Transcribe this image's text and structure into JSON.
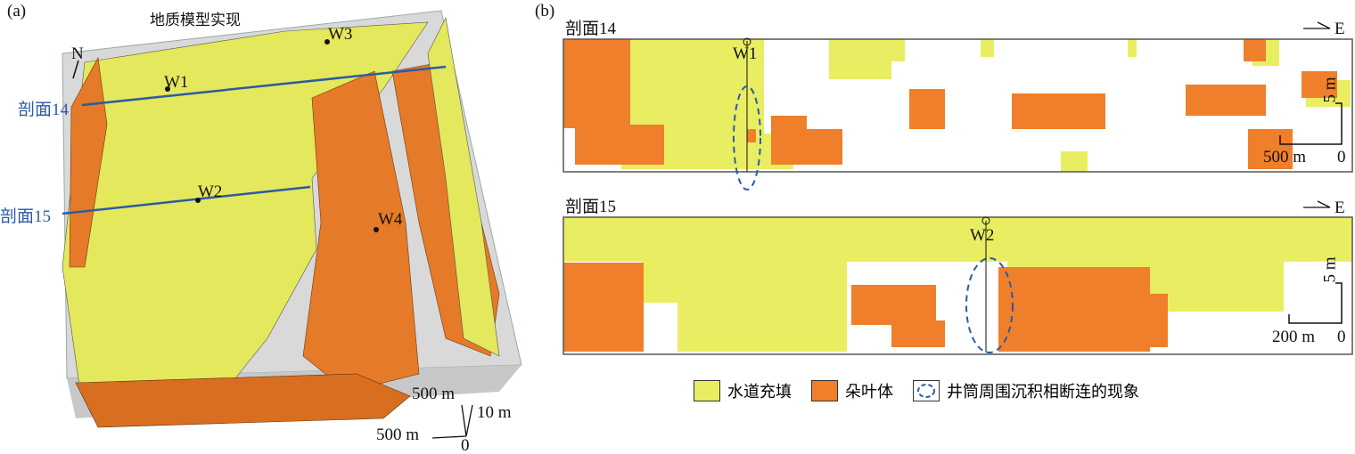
{
  "panel_a": {
    "label": "(a)",
    "title": "地质模型实现",
    "north": "N",
    "wells": [
      "W1",
      "W2",
      "W3",
      "W4"
    ],
    "sections": [
      "剖面14",
      "剖面15"
    ],
    "scale": {
      "y": "500 m",
      "x": "500 m",
      "z": "10 m",
      "origin": "0"
    }
  },
  "panel_b": {
    "label": "(b)",
    "section14": {
      "title": "剖面14",
      "direction": "E",
      "well": "W1",
      "scale_v": "5 m",
      "scale_h": "500 m",
      "origin": "0"
    },
    "section15": {
      "title": "剖面15",
      "direction": "E",
      "well": "W2",
      "scale_v": "5 m",
      "scale_h": "200 m",
      "origin": "0"
    }
  },
  "legend": [
    {
      "label": "水道充填",
      "color": "#e9ed62"
    },
    {
      "label": "朵叶体",
      "color": "#ef7f2a"
    },
    {
      "label": "井筒周围沉积相断连的现象",
      "color": "#2b5ba6"
    }
  ]
}
